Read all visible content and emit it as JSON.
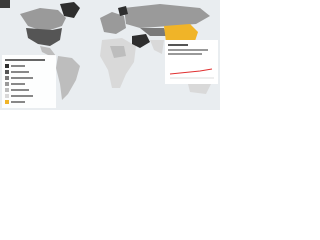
{
  "legend": {
    "colors": [
      "#2e2e2e",
      "#555555",
      "#7a7a7a",
      "#9a9a9a",
      "#bdbdbd",
      "#d9d9d9",
      "#f0b428"
    ]
  },
  "panel": {
    "line_color": "#e03030"
  }
}
